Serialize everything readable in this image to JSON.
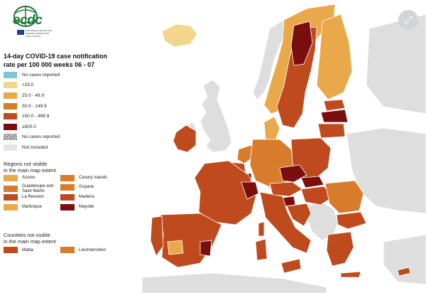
{
  "logo": {
    "text": "ecdc",
    "subtitle": "EUROPEAN CENTRE FOR DISEASE PREVENTION AND CONTROL"
  },
  "expand_icon": "expand-arrows-icon",
  "legend": {
    "title_line1": "14-day COVID-19 case notification",
    "title_line2": "rate per 100 000 weeks  06 - 07",
    "items": [
      {
        "label": "No cases reported",
        "color": "#7fc6d4",
        "pattern": "solid"
      },
      {
        "label": "<25.0",
        "color": "#f4d58d",
        "pattern": "solid"
      },
      {
        "label": "25.0 - 49.9",
        "color": "#e9a94a",
        "pattern": "solid"
      },
      {
        "label": "50.0 - 149.9",
        "color": "#d87c2b",
        "pattern": "solid"
      },
      {
        "label": "150.0 - 499.9",
        "color": "#bf4a1e",
        "pattern": "solid"
      },
      {
        "label": "≥500.0",
        "color": "#7a0d0d",
        "pattern": "solid"
      },
      {
        "label": "No cases reported",
        "color": "#b0b0b0",
        "pattern": "hatched"
      },
      {
        "label": "Not included",
        "color": "#e6e6e6",
        "pattern": "solid"
      }
    ]
  },
  "regions_title_line1": "Regions not visible",
  "regions_title_line2": "in the main map extent",
  "regions": [
    {
      "label": "Azores",
      "color": "#e9a94a"
    },
    {
      "label": "Canary Islands",
      "color": "#d87c2b"
    },
    {
      "label": "Guadeloupe and Saint Martin",
      "color": "#d87c2b"
    },
    {
      "label": "Guyane",
      "color": "#d87c2b"
    },
    {
      "label": "La Reunion",
      "color": "#bf4a1e"
    },
    {
      "label": "Madeira",
      "color": "#bf4a1e"
    },
    {
      "label": "Martinique",
      "color": "#e9a94a"
    },
    {
      "label": "Mayotte",
      "color": "#7a0d0d"
    }
  ],
  "countries_title_line1": "Countries not visible",
  "countries_title_line2": "in the main map extent",
  "countries": [
    {
      "label": "Malta",
      "color": "#bf4a1e"
    },
    {
      "label": "Liechtenstein",
      "color": "#d87c2b"
    }
  ],
  "colors": {
    "sea": "#ffffff",
    "not_included": "#dedede",
    "border": "#ffffff"
  }
}
